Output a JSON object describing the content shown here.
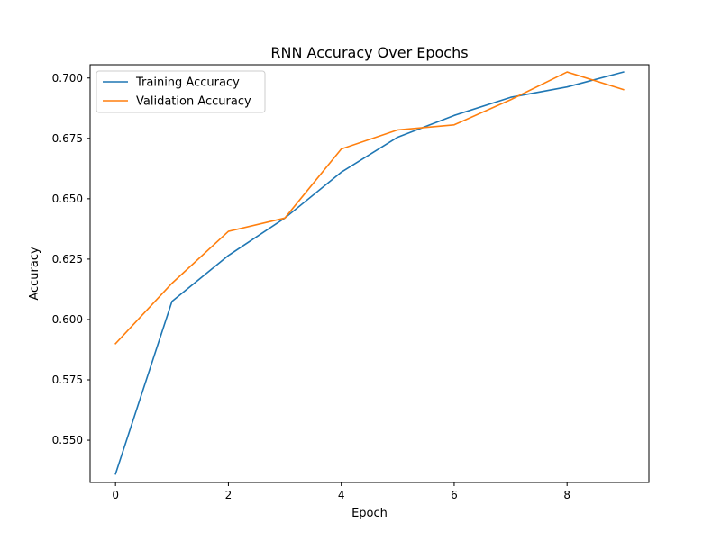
{
  "chart_data": {
    "type": "line",
    "title": "RNN Accuracy Over Epochs",
    "xlabel": "Epoch",
    "ylabel": "Accuracy",
    "x": [
      0,
      1,
      2,
      3,
      4,
      5,
      6,
      7,
      8,
      9
    ],
    "xlim": [
      -0.45,
      9.45
    ],
    "ylim": [
      0.5325,
      0.7055
    ],
    "xticks": [
      0,
      2,
      4,
      6,
      8
    ],
    "yticks": [
      0.55,
      0.575,
      0.6,
      0.625,
      0.65,
      0.675,
      0.7
    ],
    "xtick_labels": [
      "0",
      "2",
      "4",
      "6",
      "8"
    ],
    "ytick_labels": [
      "0.550",
      "0.575",
      "0.600",
      "0.625",
      "0.650",
      "0.675",
      "0.700"
    ],
    "grid": false,
    "legend_position": "top-left",
    "series": [
      {
        "name": "Training Accuracy",
        "color": "#1f77b4",
        "values": [
          0.536,
          0.6075,
          0.6265,
          0.642,
          0.661,
          0.6755,
          0.6845,
          0.692,
          0.6963,
          0.7025
        ]
      },
      {
        "name": "Validation Accuracy",
        "color": "#ff7f0e",
        "values": [
          0.59,
          0.615,
          0.6365,
          0.642,
          0.6706,
          0.6785,
          0.6806,
          0.691,
          0.7025,
          0.6952
        ]
      }
    ]
  }
}
